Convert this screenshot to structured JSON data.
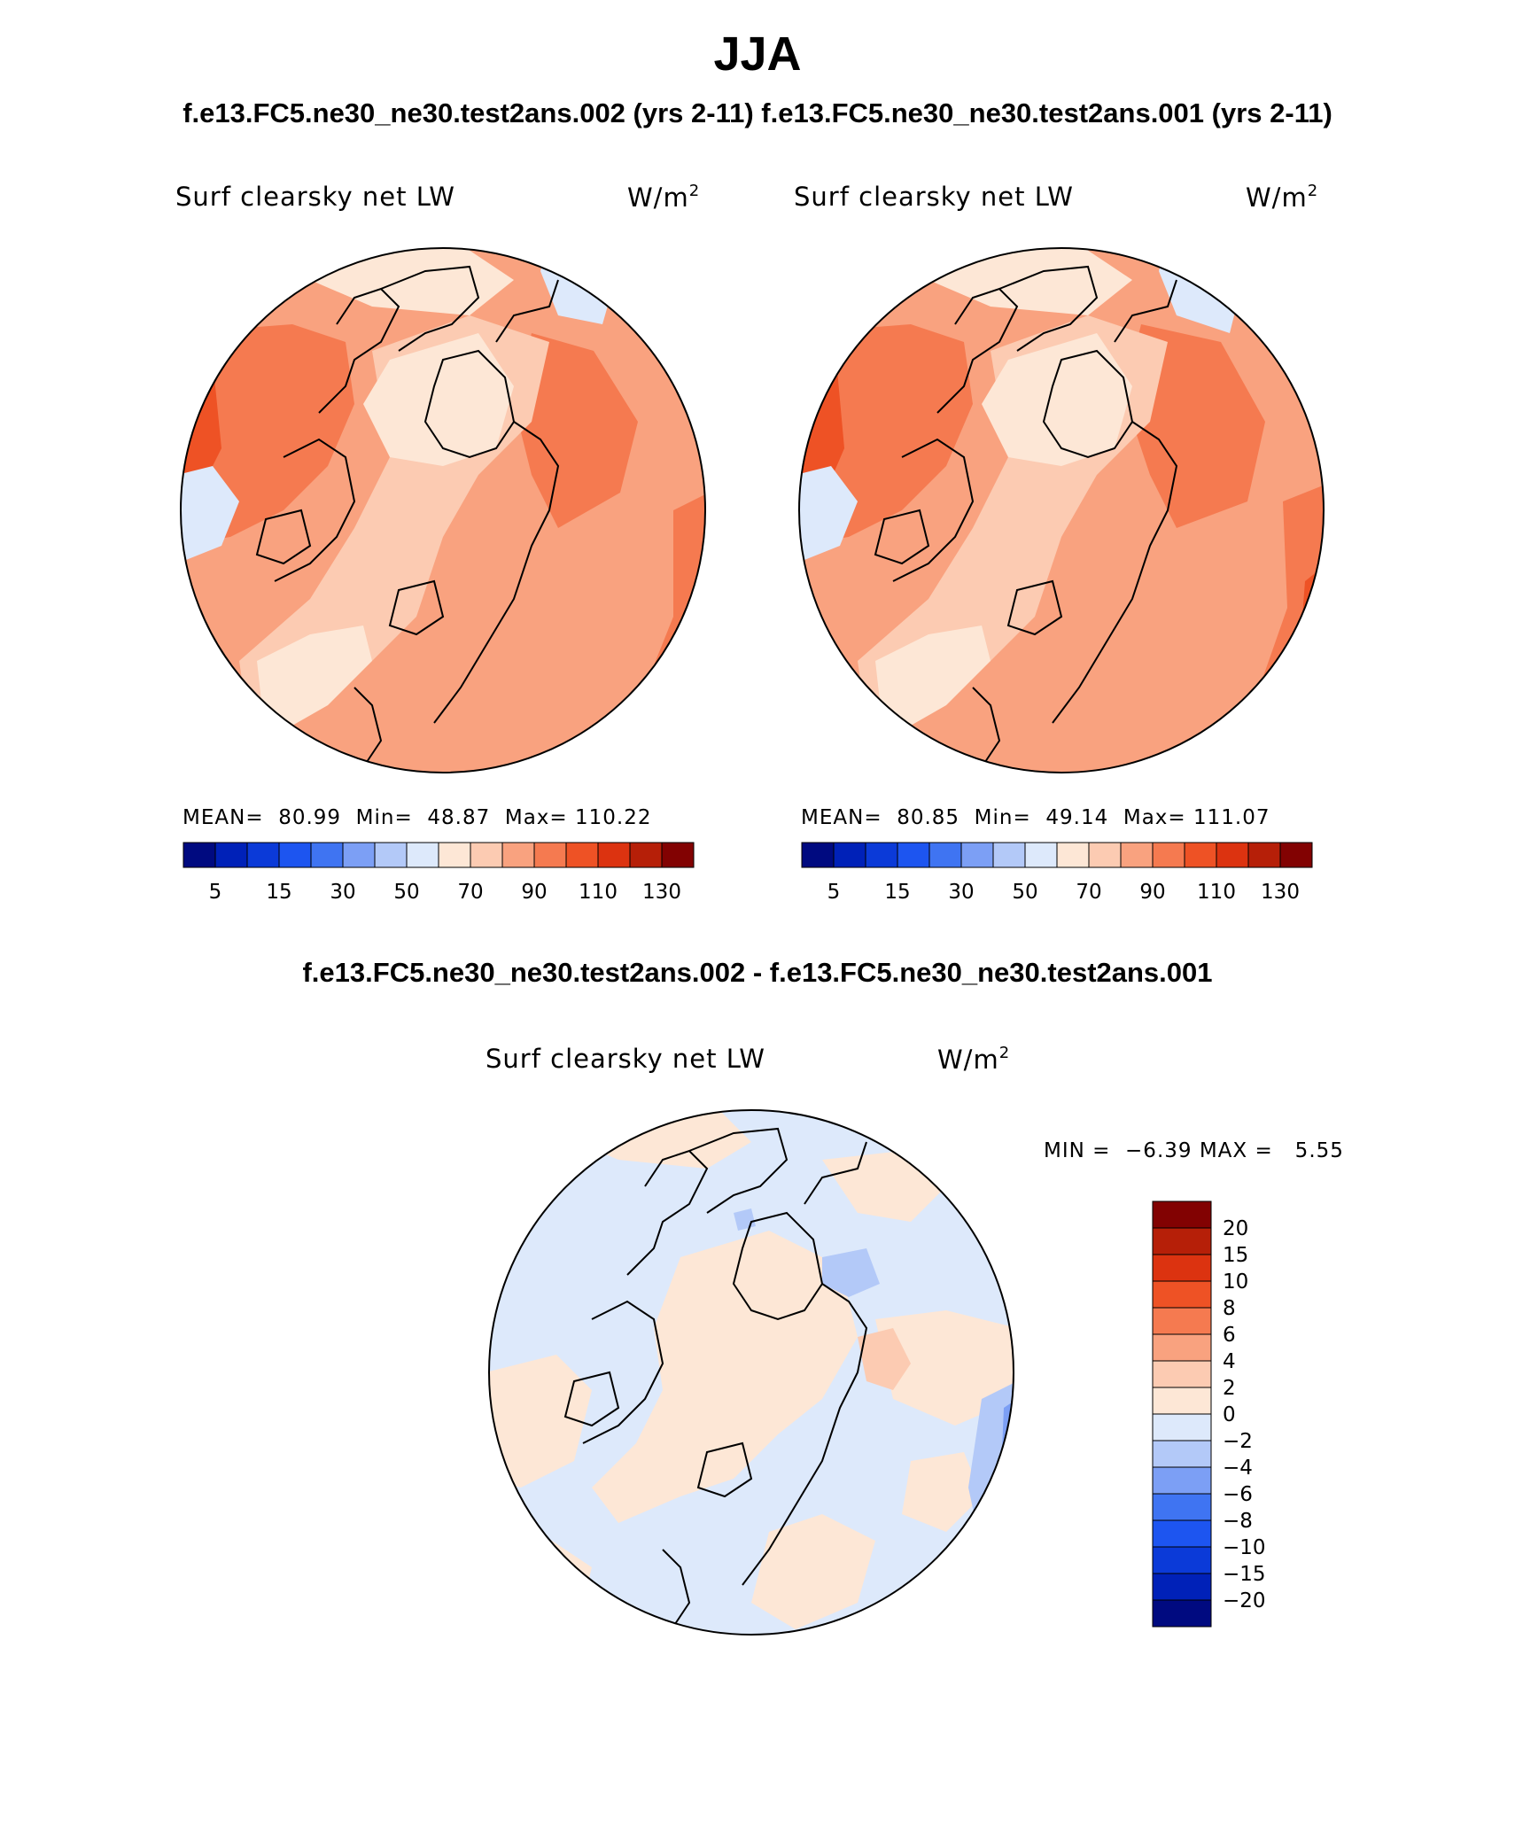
{
  "title": "JJA",
  "subtitle_top": "f.e13.FC5.ne30_ne30.test2ans.002 (yrs 2-11) f.e13.FC5.ne30_ne30.test2ans.001 (yrs 2-11)",
  "subtitle_diff": "f.e13.FC5.ne30_ne30.test2ans.002 - f.e13.FC5.ne30_ne30.test2ans.001",
  "panels": [
    {
      "variable": "Surf clearsky net LW",
      "units": "W/m",
      "units_sup": "2",
      "stats_line": "MEAN=  80.99  Min=  48.87  Max= 110.22",
      "mean": 80.99,
      "min": 48.87,
      "max": 110.22
    },
    {
      "variable": "Surf clearsky net LW",
      "units": "W/m",
      "units_sup": "2",
      "stats_line": "MEAN=  80.85  Min=  49.14  Max= 111.07",
      "mean": 80.85,
      "min": 49.14,
      "max": 111.07
    }
  ],
  "diff_panel": {
    "variable": "Surf clearsky net LW",
    "units": "W/m",
    "units_sup": "2",
    "stats_line": "MIN =  −6.39 MAX =   5.55",
    "min": -6.39,
    "max": 5.55
  },
  "colorbar_main": {
    "colors": [
      "#000a80",
      "#0021b8",
      "#0b3ad8",
      "#1d55f0",
      "#3f74f2",
      "#7c9ff5",
      "#b3c9f8",
      "#dde9fb",
      "#fde7d6",
      "#fccbb2",
      "#f9a27f",
      "#f57a50",
      "#ee5225",
      "#dc3310",
      "#b61f08",
      "#820202"
    ],
    "tick_labels": [
      "5",
      "15",
      "30",
      "50",
      "70",
      "90",
      "110",
      "130"
    ]
  },
  "colorbar_diff": {
    "colors": [
      "#820202",
      "#b61f08",
      "#dc3310",
      "#ee5225",
      "#f57a50",
      "#f9a27f",
      "#fccbb2",
      "#fde7d6",
      "#dde9fb",
      "#b3c9f8",
      "#7c9ff5",
      "#3f74f2",
      "#1d55f0",
      "#0b3ad8",
      "#0021b8",
      "#000a80"
    ],
    "tick_labels": [
      "20",
      "15",
      "10",
      "8",
      "6",
      "4",
      "2",
      "0",
      "−2",
      "−4",
      "−6",
      "−8",
      "−10",
      "−15",
      "−20"
    ]
  },
  "map_colors": {
    "c1": "#fde7d6",
    "c2": "#fccbb2",
    "c3": "#f9a27f",
    "c4": "#f57a50",
    "c5": "#ee5225",
    "b1": "#dde9fb",
    "b2": "#b3c9f8",
    "b3": "#7c9ff5"
  }
}
